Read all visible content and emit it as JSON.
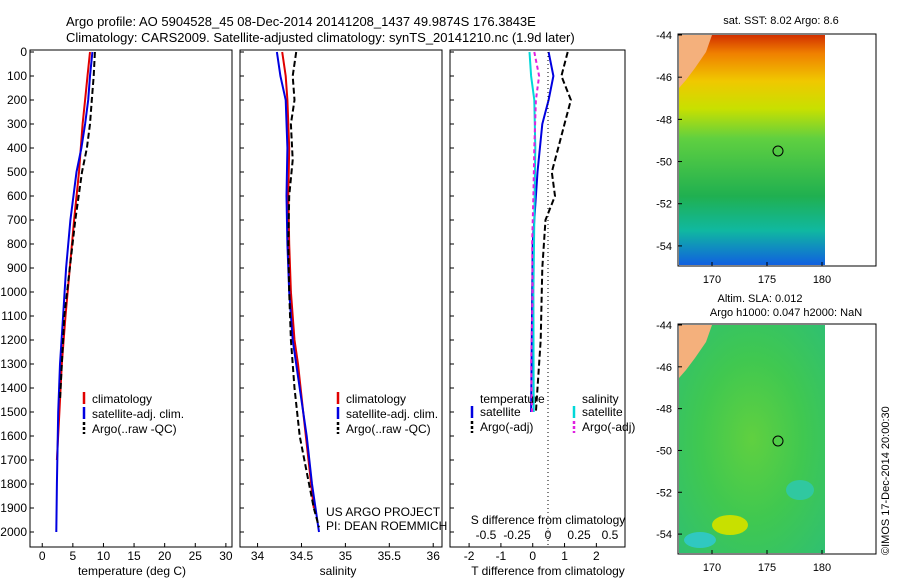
{
  "header": {
    "line1": "Argo profile: AO 5904528_45 08-Dec-2014 20141208_1437 49.9874S 176.3843E",
    "line2": "Climatology: CARS2009. Satellite-adjusted climatology: synTS_20141210.nc (1.9d later)"
  },
  "panels": {
    "temperature": {
      "xlabel": "temperature (deg C)",
      "xticks": [
        "0",
        "5",
        "10",
        "15",
        "20",
        "25",
        "30"
      ],
      "legend": [
        "climatology",
        "satellite-adj. clim.",
        "Argo(..raw -QC)"
      ]
    },
    "salinity": {
      "xlabel": "salinity",
      "xticks": [
        "34",
        "34.5",
        "35",
        "35.5",
        "36"
      ],
      "legend": [
        "climatology",
        "satellite-adj. clim.",
        "Argo(..raw -QC)"
      ],
      "project": "US ARGO PROJECT",
      "pi": "PI: DEAN ROEMMICH"
    },
    "difference": {
      "xlabel_bottom": "T difference from climatology",
      "xlabel_top": "S difference from climatology",
      "xticks_T": [
        "-2",
        "-1",
        "0",
        "1",
        "2"
      ],
      "xticks_S": [
        "-0.5",
        "-0.25",
        "0",
        "0.25",
        "0.5"
      ],
      "legend_temperature_title": "temperature",
      "legend_salinity_title": "salinity",
      "legend_satellite": "satellite",
      "legend_argo": "Argo(-adj)"
    },
    "yticks": [
      "0",
      "100",
      "200",
      "300",
      "400",
      "500",
      "600",
      "700",
      "800",
      "900",
      "1000",
      "1100",
      "1200",
      "1300",
      "1400",
      "1500",
      "1600",
      "1700",
      "1800",
      "1900",
      "2000"
    ]
  },
  "maps": {
    "sst_title": "sat. SST: 8.02 Argo: 8.6",
    "sla_title1": "Altim. SLA: 0.012",
    "sla_title2": "Argo h1000: 0.047 h2000: NaN",
    "yticks": [
      "-44",
      "-46",
      "-48",
      "-50",
      "-52",
      "-54"
    ],
    "xticks": [
      "170",
      "175",
      "180"
    ],
    "credit": "©IMOS 17-Dec-2014 20:00:30"
  },
  "colors": {
    "climatology": "#e00000",
    "satellite": "#0000e0",
    "argo": "#000000",
    "salinity_satellite": "#00d8d8",
    "salinity_argo": "#e020e0",
    "land": "#f4b07c"
  },
  "chart_data": [
    {
      "type": "line",
      "title": "",
      "xlabel": "temperature (deg C)",
      "ylabel": "",
      "xlim": [
        -2,
        31
      ],
      "ylim": [
        2000,
        0
      ],
      "series": [
        {
          "name": "climatology",
          "x": [
            7.8,
            7.4,
            7.0,
            6.6,
            6.0,
            5.2,
            4.5,
            3.8,
            3.2,
            2.8,
            2.4
          ],
          "y": [
            0,
            100,
            200,
            300,
            500,
            700,
            900,
            1100,
            1300,
            1500,
            1700
          ]
        },
        {
          "name": "satellite-adj. clim.",
          "x": [
            8.2,
            7.8,
            7.5,
            7.0,
            6.4,
            5.6,
            4.6,
            3.9,
            3.4,
            2.9,
            2.6,
            2.4,
            2.3
          ],
          "y": [
            0,
            100,
            200,
            300,
            400,
            500,
            700,
            900,
            1100,
            1300,
            1500,
            1800,
            2000
          ]
        },
        {
          "name": "Argo(..raw -QC)",
          "x": [
            8.6,
            8.4,
            8.1,
            7.8,
            7.3,
            6.5,
            5.4,
            4.5,
            3.6,
            3.2,
            2.9
          ],
          "y": [
            0,
            100,
            200,
            300,
            400,
            500,
            700,
            900,
            1100,
            1300,
            1450
          ]
        }
      ]
    },
    {
      "type": "line",
      "title": "",
      "xlabel": "salinity",
      "ylabel": "",
      "xlim": [
        33.8,
        36.1
      ],
      "ylim": [
        2000,
        0
      ],
      "series": [
        {
          "name": "climatology",
          "x": [
            34.28,
            34.32,
            34.34,
            34.36,
            34.35,
            34.36,
            34.38,
            34.42,
            34.46,
            34.52,
            34.58,
            34.64
          ],
          "y": [
            0,
            100,
            200,
            400,
            600,
            800,
            1000,
            1200,
            1300,
            1500,
            1700,
            1900
          ]
        },
        {
          "name": "satellite-adj. clim.",
          "x": [
            34.22,
            34.26,
            34.32,
            34.34,
            34.33,
            34.34,
            34.36,
            34.4,
            34.48,
            34.56,
            34.62,
            34.7
          ],
          "y": [
            0,
            100,
            200,
            400,
            600,
            800,
            1000,
            1200,
            1400,
            1600,
            1800,
            2000
          ]
        },
        {
          "name": "Argo(..raw -QC)",
          "x": [
            34.44,
            34.4,
            34.42,
            34.38,
            34.4,
            34.36,
            34.35,
            34.36,
            34.38,
            34.42,
            34.48,
            34.56,
            34.64,
            34.7
          ],
          "y": [
            0,
            100,
            200,
            300,
            450,
            600,
            800,
            1000,
            1200,
            1400,
            1600,
            1750,
            1900,
            1980
          ]
        }
      ]
    },
    {
      "type": "line",
      "title": "",
      "xlabel": "T difference from climatology",
      "ylabel": "",
      "xlim": [
        -2.6,
        2.9
      ],
      "ylim": [
        2000,
        0
      ],
      "series": [
        {
          "name": "temperature satellite",
          "x": [
            0.5,
            0.65,
            0.5,
            0.3,
            0.15,
            0.0,
            -0.05
          ],
          "y": [
            0,
            100,
            200,
            300,
            500,
            800,
            1500
          ]
        },
        {
          "name": "temperature Argo(-adj)",
          "x": [
            1.1,
            0.9,
            1.2,
            1.0,
            0.8,
            0.6,
            0.7,
            0.4,
            0.3,
            0.25,
            0.1
          ],
          "y": [
            0,
            100,
            200,
            300,
            400,
            500,
            600,
            700,
            900,
            1200,
            1500
          ]
        },
        {
          "name": "salinity satellite",
          "x": [
            -0.1,
            -0.05,
            0.05,
            0.08,
            0.05,
            0.02,
            0.03
          ],
          "y": [
            0,
            100,
            200,
            400,
            700,
            1000,
            1500
          ]
        },
        {
          "name": "salinity Argo(-adj)",
          "x": [
            0.05,
            0.2,
            0.1,
            0.05,
            0.02,
            -0.02,
            0.0,
            -0.05,
            -0.02
          ],
          "y": [
            0,
            100,
            200,
            400,
            600,
            800,
            1000,
            1300,
            1500
          ]
        }
      ]
    }
  ]
}
